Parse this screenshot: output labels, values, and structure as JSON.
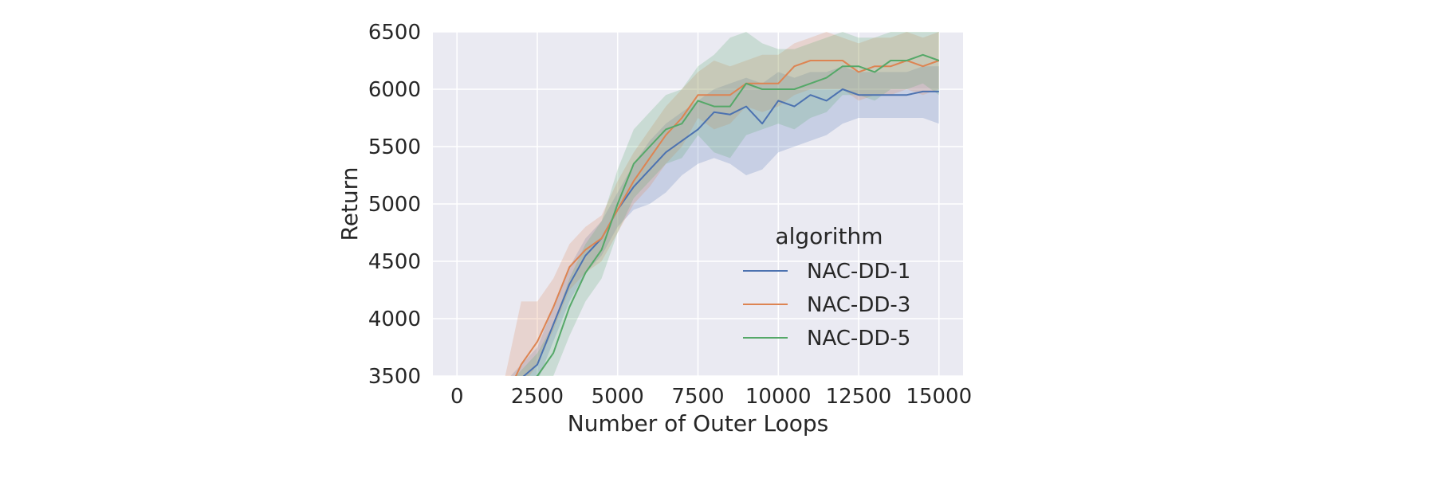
{
  "chart_data": {
    "type": "line",
    "xlabel": "Number of Outer Loops",
    "ylabel": "Return",
    "xlim": [
      -750,
      15750
    ],
    "ylim": [
      3500,
      6500
    ],
    "xticks": [
      0,
      2500,
      5000,
      7500,
      10000,
      12500,
      15000
    ],
    "yticks": [
      3500,
      4000,
      4500,
      5000,
      5500,
      6000,
      6500
    ],
    "grid": true,
    "legend": {
      "title": "algorithm",
      "position": "lower-right"
    },
    "x": [
      1500,
      2000,
      2500,
      3000,
      3500,
      4000,
      4500,
      5000,
      5500,
      6000,
      6500,
      7000,
      7500,
      8000,
      8500,
      9000,
      9500,
      10000,
      10500,
      11000,
      11500,
      12000,
      12500,
      13000,
      13500,
      14000,
      14500,
      15000
    ],
    "series": [
      {
        "name": "NAC-DD-1",
        "color": "#4c72b0",
        "values": [
          3300,
          3480,
          3600,
          3950,
          4300,
          4550,
          4700,
          4950,
          5150,
          5300,
          5450,
          5550,
          5650,
          5800,
          5780,
          5850,
          5700,
          5900,
          5850,
          5950,
          5900,
          6000,
          5950,
          5950,
          5950,
          5950,
          5980,
          5980
        ],
        "lower": [
          3150,
          3350,
          3450,
          3800,
          4150,
          4400,
          4550,
          4800,
          4950,
          5000,
          5100,
          5250,
          5350,
          5400,
          5350,
          5250,
          5300,
          5450,
          5500,
          5550,
          5600,
          5700,
          5750,
          5750,
          5750,
          5750,
          5750,
          5700
        ],
        "upper": [
          3450,
          3600,
          3750,
          4100,
          4450,
          4700,
          4850,
          5100,
          5350,
          5550,
          5700,
          5800,
          5900,
          6000,
          6050,
          6100,
          6050,
          6150,
          6100,
          6150,
          6150,
          6200,
          6150,
          6150,
          6150,
          6150,
          6200,
          6200
        ]
      },
      {
        "name": "NAC-DD-3",
        "color": "#dd8452",
        "values": [
          3300,
          3600,
          3800,
          4100,
          4450,
          4600,
          4700,
          4950,
          5200,
          5400,
          5600,
          5750,
          5950,
          5950,
          5950,
          6050,
          6050,
          6050,
          6200,
          6250,
          6250,
          6250,
          6150,
          6200,
          6200,
          6250,
          6200,
          6250
        ],
        "lower": [
          3150,
          3400,
          3600,
          3900,
          4250,
          4400,
          4500,
          4750,
          5000,
          5150,
          5350,
          5500,
          5750,
          5650,
          5700,
          5850,
          5800,
          5850,
          5950,
          6000,
          6000,
          6000,
          5900,
          5950,
          5950,
          6000,
          5950,
          6000
        ],
        "upper": [
          3500,
          4150,
          4150,
          4350,
          4650,
          4800,
          4900,
          5200,
          5450,
          5650,
          5850,
          6000,
          6150,
          6250,
          6200,
          6250,
          6300,
          6300,
          6400,
          6450,
          6500,
          6450,
          6400,
          6450,
          6450,
          6500,
          6450,
          6500
        ]
      },
      {
        "name": "NAC-DD-5",
        "color": "#55a868",
        "values": [
          3250,
          3400,
          3500,
          3700,
          4100,
          4400,
          4600,
          5000,
          5350,
          5500,
          5650,
          5700,
          5900,
          5850,
          5850,
          6050,
          6000,
          6000,
          6000,
          6050,
          6100,
          6200,
          6200,
          6150,
          6250,
          6250,
          6300,
          6250
        ],
        "lower": [
          3100,
          3250,
          3350,
          3500,
          3850,
          4150,
          4350,
          4750,
          5050,
          5200,
          5350,
          5400,
          5600,
          5450,
          5400,
          5600,
          5650,
          5700,
          5650,
          5750,
          5800,
          5950,
          5950,
          5900,
          6000,
          6000,
          6050,
          5950
        ],
        "upper": [
          3400,
          3550,
          3700,
          3950,
          4350,
          4650,
          4850,
          5300,
          5650,
          5800,
          5950,
          6000,
          6200,
          6300,
          6450,
          6500,
          6400,
          6350,
          6350,
          6400,
          6450,
          6500,
          6450,
          6450,
          6500,
          6500,
          6500,
          6500
        ]
      }
    ]
  }
}
